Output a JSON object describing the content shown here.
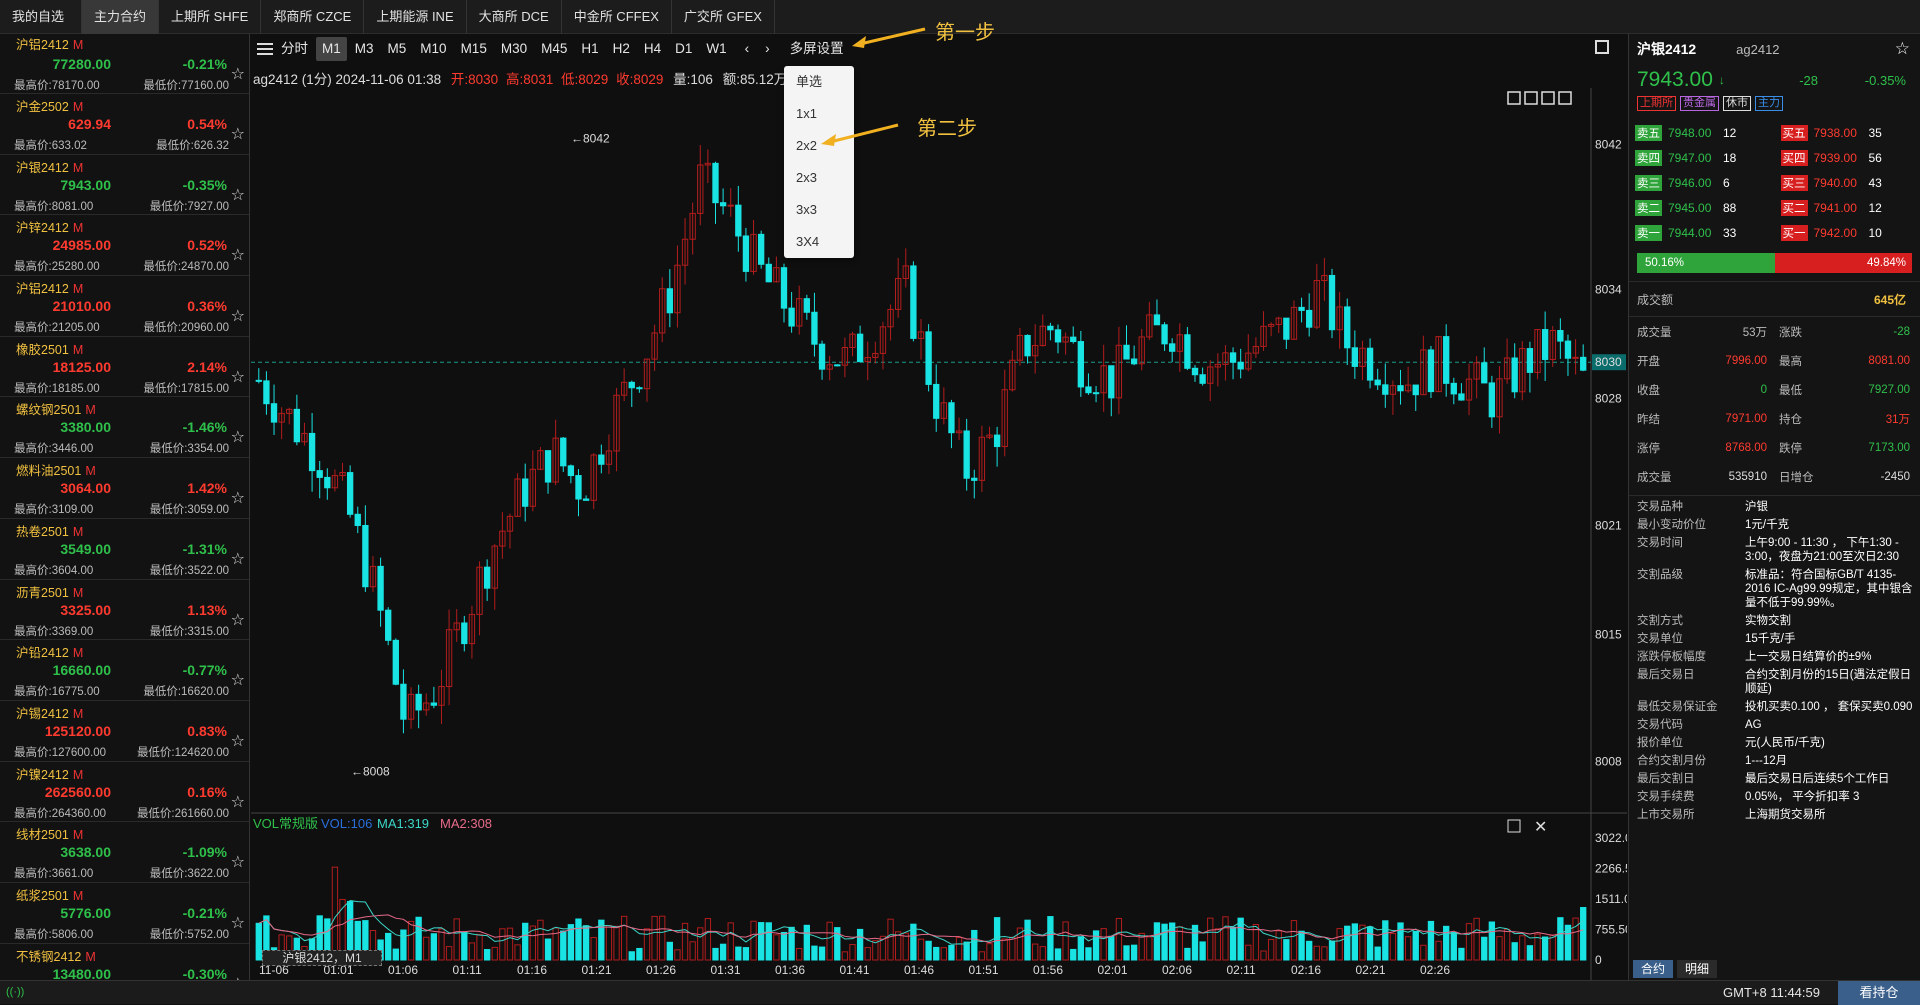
{
  "tabs": [
    "我的自选",
    "主力合约",
    "上期所 SHFE",
    "郑商所 CZCE",
    "上期能源 INE",
    "大商所 DCE",
    "中金所 CFFEX",
    "广交所 GFEX"
  ],
  "watchlist": [
    {
      "name": "沪铝2412",
      "m": "M",
      "price": "",
      "pct": "",
      "high": "",
      "low": "",
      "dir": "dn"
    },
    {
      "name": "",
      "m": "",
      "price": "77280.00",
      "pct": "-0.21%",
      "high": "最高价:78170.00",
      "low": "最低价:77160.00",
      "dir": "dn"
    },
    {
      "name": "沪金2502",
      "m": "M",
      "price": "629.94",
      "pct": "0.54%",
      "high": "最高价:633.02",
      "low": "最低价:626.32",
      "dir": "up"
    },
    {
      "name": "沪银2412",
      "m": "M",
      "price": "7943.00",
      "pct": "-0.35%",
      "high": "最高价:8081.00",
      "low": "最低价:7927.00",
      "dir": "dn"
    },
    {
      "name": "沪锌2412",
      "m": "M",
      "price": "24985.00",
      "pct": "0.52%",
      "high": "最高价:25280.00",
      "low": "最低价:24870.00",
      "dir": "up"
    },
    {
      "name": "沪铝2412",
      "m": "M",
      "price": "21010.00",
      "pct": "0.36%",
      "high": "最高价:21205.00",
      "low": "最低价:20960.00",
      "dir": "up"
    },
    {
      "name": "橡胶2501",
      "m": "M",
      "price": "18125.00",
      "pct": "2.14%",
      "high": "最高价:18185.00",
      "low": "最低价:17815.00",
      "dir": "up"
    },
    {
      "name": "螺纹钢2501",
      "m": "M",
      "price": "3380.00",
      "pct": "-1.46%",
      "high": "最高价:3446.00",
      "low": "最低价:3354.00",
      "dir": "dn"
    },
    {
      "name": "燃料油2501",
      "m": "M",
      "price": "3064.00",
      "pct": "1.42%",
      "high": "最高价:3109.00",
      "low": "最低价:3059.00",
      "dir": "up"
    },
    {
      "name": "热卷2501",
      "m": "M",
      "price": "3549.00",
      "pct": "-1.31%",
      "high": "最高价:3604.00",
      "low": "最低价:3522.00",
      "dir": "dn"
    },
    {
      "name": "沥青2501",
      "m": "M",
      "price": "3325.00",
      "pct": "1.13%",
      "high": "最高价:3369.00",
      "low": "最低价:3315.00",
      "dir": "up"
    },
    {
      "name": "沪铅2412",
      "m": "M",
      "price": "16660.00",
      "pct": "-0.77%",
      "high": "最高价:16775.00",
      "low": "最低价:16620.00",
      "dir": "dn"
    },
    {
      "name": "沪锡2412",
      "m": "M",
      "price": "125120.00",
      "pct": "0.83%",
      "high": "最高价:127600.00",
      "low": "最低价:124620.00",
      "dir": "up"
    },
    {
      "name": "沪镍2412",
      "m": "M",
      "price": "262560.00",
      "pct": "0.16%",
      "high": "最高价:264360.00",
      "low": "最低价:261660.00",
      "dir": "up"
    },
    {
      "name": "线材2501",
      "m": "M",
      "price": "3638.00",
      "pct": "-1.09%",
      "high": "最高价:3661.00",
      "low": "最低价:3622.00",
      "dir": "dn"
    },
    {
      "name": "纸浆2501",
      "m": "M",
      "price": "5776.00",
      "pct": "-0.21%",
      "high": "最高价:5806.00",
      "low": "最低价:5752.00",
      "dir": "dn"
    },
    {
      "name": "不锈钢2412",
      "m": "M",
      "price": "13480.00",
      "pct": "-0.30%",
      "high": "",
      "low": "",
      "dir": "dn"
    }
  ],
  "toolbar": {
    "periods": [
      "分时",
      "M1",
      "M3",
      "M5",
      "M10",
      "M15",
      "M30",
      "M45",
      "H1",
      "H2",
      "H4",
      "D1",
      "W1"
    ],
    "active": "M1",
    "multi": "多屏设置"
  },
  "infobar": {
    "sym": "ag2412 (1分) 2024-11-06 01:38",
    "open": "开:8030",
    "high": "高:8031",
    "low": "低:8029",
    "close": "收:8029",
    "vol": "量:106",
    "amt": "额:85.12万",
    "tail": "4"
  },
  "dropdown": [
    "单选",
    "1x1",
    "2x2",
    "2x3",
    "3x3",
    "3X4"
  ],
  "annotations": {
    "step1": "第一步",
    "step2": "第二步"
  },
  "chart": {
    "price_axis": [
      "8042",
      "8034",
      "8030",
      "8028",
      "8021",
      "8015",
      "8008"
    ],
    "current_price": "8030",
    "max_label": "←8042",
    "min_label": "←8008",
    "vol_title": "VOL常规版",
    "vol_val": "VOL:106",
    "ma1": "MA1:319",
    "ma2": "MA2:308",
    "vol_axis": [
      "3022.0",
      "2266.5",
      "1511.0",
      "755.50",
      "0"
    ],
    "time_labels": [
      "11-06",
      "01:01",
      "01:06",
      "01:11",
      "01:16",
      "01:21",
      "01:26",
      "01:31",
      "01:36",
      "01:41",
      "01:46",
      "01:51",
      "01:56",
      "02:01",
      "02:06",
      "02:11",
      "02:16",
      "02:21",
      "02:26"
    ],
    "footer_tag": "沪银2412，M1"
  },
  "chart_data": {
    "type": "candlestick",
    "ylim": [
      8006,
      8044
    ],
    "current": 8030,
    "max": 8042,
    "min": 8008,
    "vol_ylim": [
      0,
      3022
    ]
  },
  "right": {
    "title": "沪银2412",
    "code": "ag2412",
    "price": "7943.00",
    "change": "-28",
    "pct": "-0.35%",
    "tags": [
      "上期所",
      "贵金属",
      "休市",
      "主力"
    ],
    "asks": [
      {
        "l": "卖五",
        "p": "7948.00",
        "v": "12"
      },
      {
        "l": "卖四",
        "p": "7947.00",
        "v": "18"
      },
      {
        "l": "卖三",
        "p": "7946.00",
        "v": "6"
      },
      {
        "l": "卖二",
        "p": "7945.00",
        "v": "88"
      },
      {
        "l": "卖一",
        "p": "7944.00",
        "v": "33"
      }
    ],
    "bids": [
      {
        "l": "买五",
        "p": "7938.00",
        "v": "35"
      },
      {
        "l": "买四",
        "p": "7939.00",
        "v": "56"
      },
      {
        "l": "买三",
        "p": "7940.00",
        "v": "43"
      },
      {
        "l": "买二",
        "p": "7941.00",
        "v": "12"
      },
      {
        "l": "买一",
        "p": "7942.00",
        "v": "10"
      }
    ],
    "buy_ratio": "50.16%",
    "sell_ratio": "49.84%",
    "turnover_label": "成交额",
    "turnover": "645亿",
    "stats": [
      {
        "k": "成交量",
        "v": "53万",
        "k2": "涨跌",
        "v2": "-28"
      },
      {
        "k": "开盘",
        "v": "7996.00",
        "k2": "最高",
        "v2": "8081.00"
      },
      {
        "k": "收盘",
        "v": "0",
        "k2": "最低",
        "v2": "7927.00"
      },
      {
        "k": "昨结",
        "v": "7971.00",
        "k2": "持仓",
        "v2": "31万"
      },
      {
        "k": "涨停",
        "v": "8768.00",
        "k2": "跌停",
        "v2": "7173.00"
      },
      {
        "k": "成交量",
        "v": "535910",
        "k2": "日增仓",
        "v2": "-2450"
      }
    ],
    "specs": [
      {
        "k": "交易品种",
        "v": "沪银"
      },
      {
        "k": "最小变动价位",
        "v": "1元/千克"
      },
      {
        "k": "交易时间",
        "v": "上午9:00 - 11:30 ， 下午1:30 - 3:00，夜盘为21:00至次日2:30"
      },
      {
        "k": "交割品级",
        "v": "标准品：符合国标GB/T 4135-2016 IC-Ag99.99规定，其中银含量不低于99.99%。"
      },
      {
        "k": "交割方式",
        "v": "实物交割"
      },
      {
        "k": "交易单位",
        "v": "15千克/手"
      },
      {
        "k": "涨跌停板幅度",
        "v": "上一交易日结算价的±9%"
      },
      {
        "k": "最后交易日",
        "v": "合约交割月份的15日(遇法定假日顺延)"
      },
      {
        "k": "最低交易保证金",
        "v": "投机买卖0.100 ， 套保买卖0.090"
      },
      {
        "k": "交易代码",
        "v": "AG"
      },
      {
        "k": "报价单位",
        "v": "元(人民币/千克)"
      },
      {
        "k": "合约交割月份",
        "v": "1---12月"
      },
      {
        "k": "最后交割日",
        "v": "最后交易日后连续5个工作日"
      },
      {
        "k": "交易手续费",
        "v": "0.05%， 平今折扣率 3"
      },
      {
        "k": "上市交易所",
        "v": "上海期货交易所"
      }
    ],
    "foot": [
      "合约",
      "明细"
    ]
  },
  "status": {
    "gmt": "GMT+8 11:44:59",
    "hold": "看持仓",
    "left": "((·))"
  },
  "colors": {
    "up": "#ff3b30",
    "down": "#2fc04b",
    "candle_up": "#b21d1d",
    "candle_down": "#19e3e3",
    "ma1": "#3cd6c8",
    "ma2": "#e86b8a"
  }
}
